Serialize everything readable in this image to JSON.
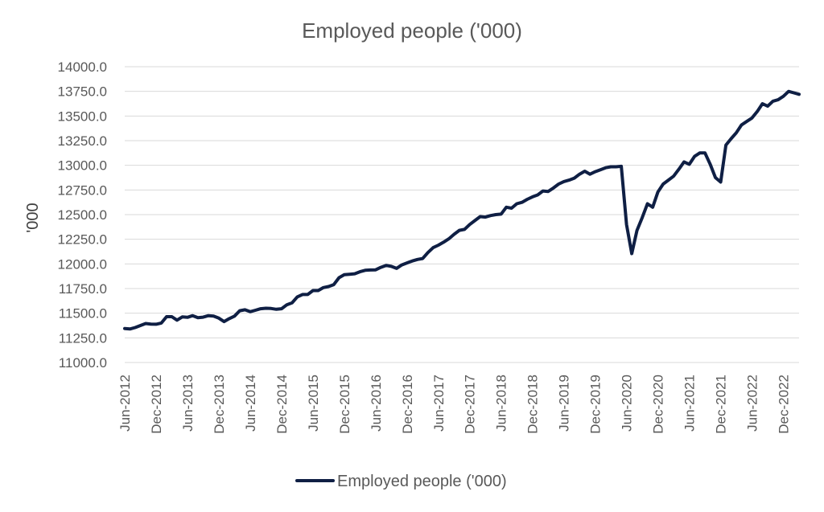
{
  "chart_data": {
    "type": "line",
    "title": "Employed people ('000)",
    "ylabel": "'000",
    "xlabel": "",
    "ylim": [
      11000,
      14000
    ],
    "y_ticks": [
      11000,
      11250,
      11500,
      11750,
      12000,
      12250,
      12500,
      12750,
      13000,
      13250,
      13500,
      13750,
      14000
    ],
    "y_tick_labels": [
      "11000.0",
      "11250.0",
      "11500.0",
      "11750.0",
      "12000.0",
      "12250.0",
      "12500.0",
      "12750.0",
      "13000.0",
      "13250.0",
      "13500.0",
      "13750.0",
      "14000.0"
    ],
    "x_tick_labels": [
      "Jun-2012",
      "Dec-2012",
      "Jun-2013",
      "Dec-2013",
      "Jun-2014",
      "Dec-2014",
      "Jun-2015",
      "Dec-2015",
      "Jun-2016",
      "Dec-2016",
      "Jun-2017",
      "Dec-2017",
      "Jun-2018",
      "Dec-2018",
      "Jun-2019",
      "Dec-2019",
      "Jun-2020",
      "Dec-2020",
      "Jun-2021",
      "Dec-2021",
      "Jun-2022",
      "Dec-2022"
    ],
    "x_start": "Jun-2012",
    "x_end": "Mar-2023",
    "grid": true,
    "legend_position": "bottom",
    "series": [
      {
        "name": "Employed people ('000)",
        "color": "#0f1f44",
        "values": [
          11345,
          11340,
          11355,
          11375,
          11395,
          11390,
          11388,
          11400,
          11465,
          11465,
          11430,
          11462,
          11458,
          11475,
          11455,
          11460,
          11475,
          11470,
          11450,
          11415,
          11445,
          11470,
          11525,
          11535,
          11515,
          11530,
          11545,
          11550,
          11548,
          11540,
          11545,
          11585,
          11605,
          11665,
          11690,
          11690,
          11730,
          11730,
          11760,
          11770,
          11790,
          11860,
          11890,
          11895,
          11900,
          11920,
          11935,
          11938,
          11940,
          11965,
          11985,
          11975,
          11955,
          11990,
          12010,
          12030,
          12045,
          12055,
          12115,
          12165,
          12190,
          12220,
          12255,
          12300,
          12340,
          12350,
          12400,
          12440,
          12480,
          12475,
          12490,
          12500,
          12505,
          12575,
          12565,
          12610,
          12625,
          12655,
          12680,
          12700,
          12740,
          12735,
          12770,
          12810,
          12835,
          12850,
          12870,
          12910,
          12940,
          12910,
          12935,
          12955,
          12975,
          12985,
          12985,
          12990,
          12400,
          12105,
          12340,
          12470,
          12610,
          12575,
          12730,
          12810,
          12850,
          12890,
          12960,
          13035,
          13010,
          13090,
          13125,
          13125,
          13010,
          12875,
          12830,
          13205,
          13270,
          13330,
          13410,
          13445,
          13480,
          13545,
          13625,
          13600,
          13650,
          13665,
          13700,
          13750,
          13735,
          13720
        ]
      }
    ]
  }
}
